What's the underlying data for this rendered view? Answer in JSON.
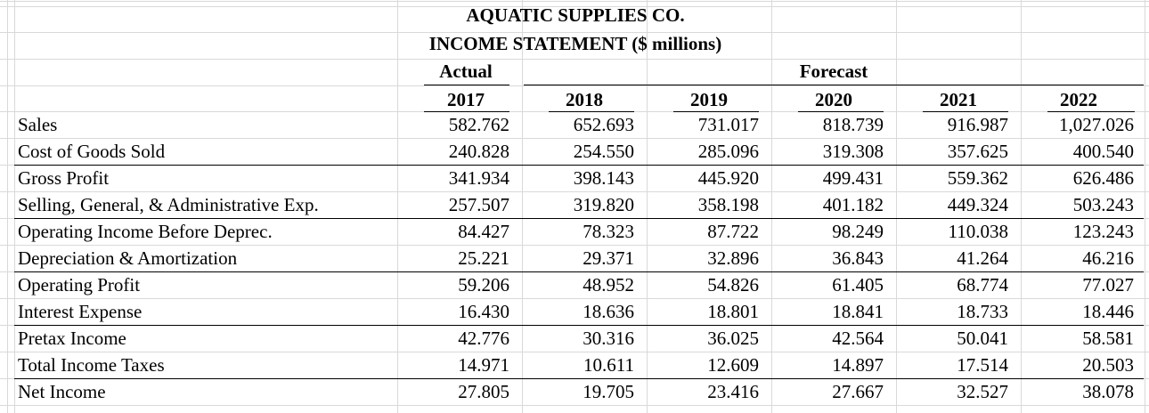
{
  "title": {
    "line1": "AQUATIC SUPPLIES CO.",
    "line2": "INCOME STATEMENT ($ millions)"
  },
  "headers": {
    "actual": "Actual",
    "forecast": "Forecast",
    "years": [
      "2017",
      "2018",
      "2019",
      "2020",
      "2021",
      "2022"
    ]
  },
  "rows": [
    {
      "label": "Sales",
      "values": [
        "582.762",
        "652.693",
        "731.017",
        "818.739",
        "916.987",
        "1,027.026"
      ]
    },
    {
      "label": "Cost of Goods Sold",
      "values": [
        "240.828",
        "254.550",
        "285.096",
        "319.308",
        "357.625",
        "400.540"
      ]
    },
    {
      "label": "Gross Profit",
      "values": [
        "341.934",
        "398.143",
        "445.920",
        "499.431",
        "559.362",
        "626.486"
      ]
    },
    {
      "label": "Selling, General, & Administrative Exp.",
      "values": [
        "257.507",
        "319.820",
        "358.198",
        "401.182",
        "449.324",
        "503.243"
      ]
    },
    {
      "label": "Operating Income Before Deprec.",
      "values": [
        "84.427",
        "78.323",
        "87.722",
        "98.249",
        "110.038",
        "123.243"
      ]
    },
    {
      "label": "Depreciation & Amortization",
      "values": [
        "25.221",
        "29.371",
        "32.896",
        "36.843",
        "41.264",
        "46.216"
      ]
    },
    {
      "label": "Operating Profit",
      "values": [
        "59.206",
        "48.952",
        "54.826",
        "61.405",
        "68.774",
        "77.027"
      ]
    },
    {
      "label": "Interest Expense",
      "values": [
        "16.430",
        "18.636",
        "18.801",
        "18.841",
        "18.733",
        "18.446"
      ]
    },
    {
      "label": "Pretax Income",
      "values": [
        "42.776",
        "30.316",
        "36.025",
        "42.564",
        "50.041",
        "58.581"
      ]
    },
    {
      "label": "Total Income Taxes",
      "values": [
        "14.971",
        "10.611",
        "12.609",
        "14.897",
        "17.514",
        "20.503"
      ]
    },
    {
      "label": "Net Income",
      "values": [
        "27.805",
        "19.705",
        "23.416",
        "27.667",
        "32.527",
        "38.078"
      ]
    }
  ]
}
